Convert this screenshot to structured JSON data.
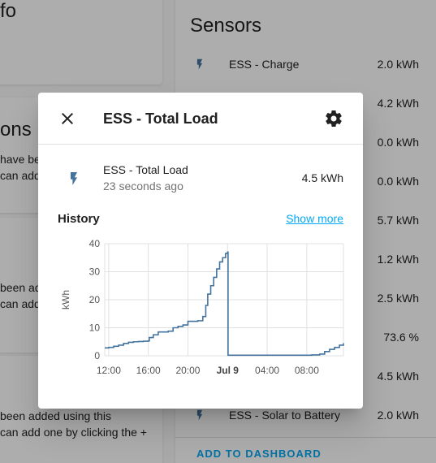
{
  "background": {
    "left_cards": {
      "card1_title": "fo",
      "card2_title": "ons",
      "card2_lines": [
        "have be",
        "can add"
      ],
      "card3_lines": [
        "been ad",
        "can add"
      ],
      "card4_lines": [
        "been added using this",
        "can add one by clicking the +"
      ]
    },
    "sensors": {
      "title": "Sensors",
      "items": [
        {
          "name": "ESS - Charge",
          "value": "2.0 kWh"
        },
        {
          "name": "",
          "value": "4.2 kWh"
        },
        {
          "name": "",
          "value": "0.0 kWh"
        },
        {
          "name": "",
          "value": "0.0 kWh"
        },
        {
          "name": "",
          "value": "5.7 kWh"
        },
        {
          "name": "",
          "value": "1.2 kWh"
        },
        {
          "name": "",
          "value": "2.5 kWh"
        },
        {
          "name": "",
          "value": "73.6 %"
        },
        {
          "name": "",
          "value": "4.5 kWh"
        },
        {
          "name": "ESS - Solar to Battery",
          "value": "2.0 kWh"
        }
      ],
      "add_button": "ADD TO DASHBOARD"
    }
  },
  "dialog": {
    "title": "ESS - Total Load",
    "entity": {
      "name": "ESS - Total Load",
      "last_changed": "23 seconds ago",
      "state": "4.5 kWh",
      "icon": "flash-icon"
    },
    "history_title": "History",
    "show_more": "Show more"
  },
  "chart_data": {
    "type": "line",
    "step": true,
    "ylabel": "kWh",
    "ylim": [
      0,
      40
    ],
    "y_ticks": [
      "0",
      "10",
      "20",
      "30",
      "40"
    ],
    "x_ticks": [
      "12:00",
      "16:00",
      "20:00",
      "Jul 9",
      "04:00",
      "08:00"
    ],
    "x_tick_hours": [
      12,
      16,
      20,
      24,
      28,
      32
    ],
    "xlim_hours": [
      11.6,
      35.7
    ],
    "grid": true,
    "color": "#44739e",
    "series": [
      {
        "name": "",
        "points": [
          [
            11.6,
            2.8
          ],
          [
            12.0,
            3.0
          ],
          [
            12.5,
            3.4
          ],
          [
            13.0,
            3.8
          ],
          [
            13.5,
            4.4
          ],
          [
            14.0,
            4.8
          ],
          [
            14.5,
            5.0
          ],
          [
            15.0,
            5.1
          ],
          [
            15.5,
            5.2
          ],
          [
            16.0,
            5.3
          ],
          [
            16.1,
            5.4
          ],
          [
            16.1,
            6.5
          ],
          [
            16.5,
            7.5
          ],
          [
            17.0,
            8.5
          ],
          [
            18.0,
            8.8
          ],
          [
            18.5,
            10.0
          ],
          [
            19.0,
            10.5
          ],
          [
            19.5,
            11.0
          ],
          [
            20.0,
            12.3
          ],
          [
            21.0,
            12.5
          ],
          [
            21.5,
            14.0
          ],
          [
            21.8,
            18.0
          ],
          [
            22.0,
            22.0
          ],
          [
            22.3,
            25.0
          ],
          [
            22.6,
            28.0
          ],
          [
            22.9,
            31.0
          ],
          [
            23.2,
            33.5
          ],
          [
            23.5,
            35.0
          ],
          [
            23.8,
            36.5
          ],
          [
            24.0,
            37.0
          ],
          [
            24.05,
            0.2
          ],
          [
            28.0,
            0.2
          ],
          [
            31.0,
            0.2
          ],
          [
            32.5,
            0.3
          ],
          [
            33.3,
            0.6
          ],
          [
            33.8,
            1.5
          ],
          [
            34.3,
            2.3
          ],
          [
            34.8,
            3.0
          ],
          [
            35.3,
            3.8
          ],
          [
            35.7,
            4.5
          ]
        ]
      }
    ]
  }
}
